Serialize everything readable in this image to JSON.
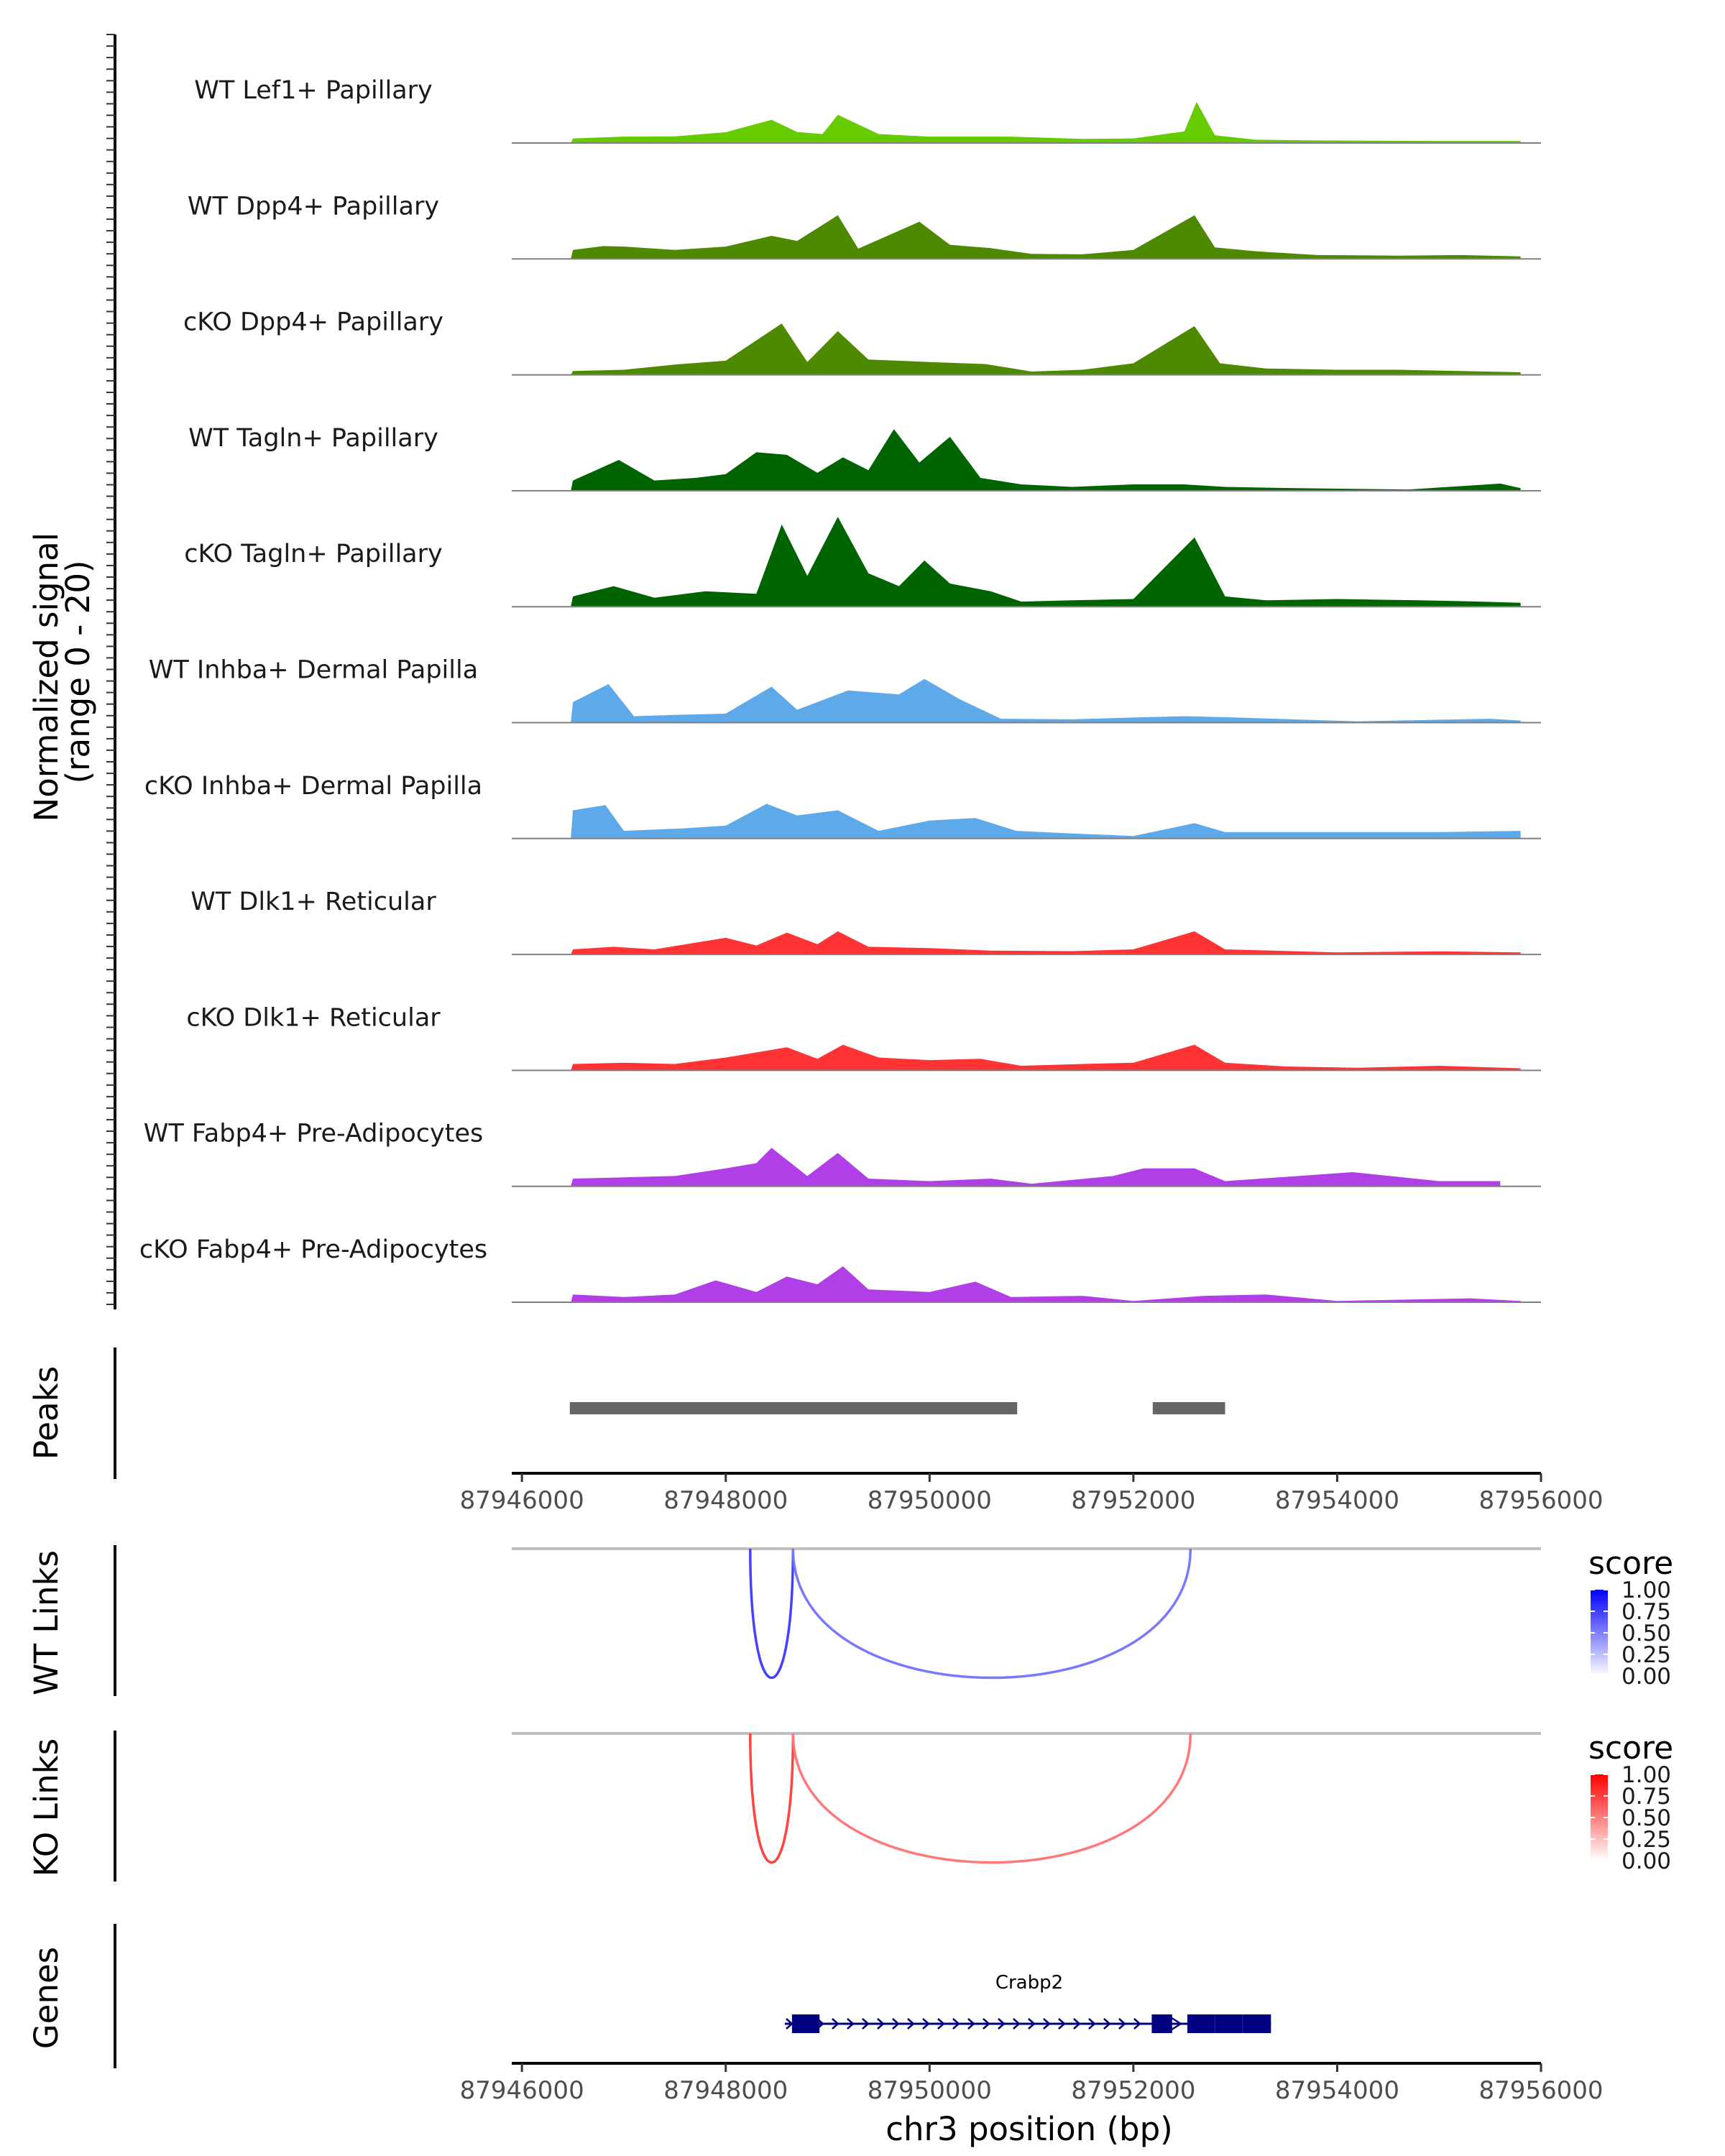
{
  "chart_data": {
    "type": "genome-track",
    "xaxis": {
      "label": "chr3 position (bp)",
      "range": [
        87945900,
        87956000
      ],
      "ticks": [
        87946000,
        87948000,
        87950000,
        87952000,
        87954000,
        87956000
      ],
      "tick_labels": [
        "87946000",
        "87948000",
        "87950000",
        "87952000",
        "87954000",
        "87956000"
      ]
    },
    "coverage": {
      "ylabel_line1": "Normalized signal",
      "ylabel_line2": "(range 0 - 20)",
      "y_range": [
        0,
        20
      ],
      "tracks": [
        {
          "name": "WT Lef1+ Papillary",
          "color": "#66CC00",
          "points": [
            [
              87946480,
              0
            ],
            [
              87946500,
              1.8
            ],
            [
              87947000,
              2.5
            ],
            [
              87947500,
              2.6
            ],
            [
              87948000,
              4.2
            ],
            [
              87948450,
              9
            ],
            [
              87948700,
              4.3
            ],
            [
              87948950,
              3.5
            ],
            [
              87949100,
              11
            ],
            [
              87949500,
              3.5
            ],
            [
              87950000,
              2.5
            ],
            [
              87950800,
              2.5
            ],
            [
              87951500,
              1.6
            ],
            [
              87952000,
              1.8
            ],
            [
              87952500,
              4.5
            ],
            [
              87952620,
              16
            ],
            [
              87952800,
              3
            ],
            [
              87953200,
              1.3
            ],
            [
              87953800,
              1
            ],
            [
              87955000,
              0.8
            ],
            [
              87955800,
              0.8
            ]
          ]
        },
        {
          "name": "WT Dpp4+ Papillary",
          "color": "#4D8A00",
          "points": [
            [
              87946480,
              0
            ],
            [
              87946500,
              3.5
            ],
            [
              87946800,
              5
            ],
            [
              87947000,
              4.8
            ],
            [
              87947500,
              3.5
            ],
            [
              87948000,
              4.8
            ],
            [
              87948450,
              9
            ],
            [
              87948700,
              7
            ],
            [
              87949100,
              17
            ],
            [
              87949300,
              4
            ],
            [
              87949900,
              14.5
            ],
            [
              87950200,
              5.5
            ],
            [
              87950600,
              4.2
            ],
            [
              87951000,
              2
            ],
            [
              87951500,
              1.8
            ],
            [
              87952000,
              3.5
            ],
            [
              87952600,
              17
            ],
            [
              87952800,
              4.5
            ],
            [
              87953200,
              3
            ],
            [
              87953800,
              1.5
            ],
            [
              87954600,
              1.3
            ],
            [
              87955200,
              1.5
            ],
            [
              87955800,
              1
            ]
          ]
        },
        {
          "name": "cKO Dpp4+ Papillary",
          "color": "#4D8A00",
          "points": [
            [
              87946480,
              0
            ],
            [
              87946500,
              1.5
            ],
            [
              87947000,
              2
            ],
            [
              87947500,
              4
            ],
            [
              87948000,
              5.5
            ],
            [
              87948550,
              20
            ],
            [
              87948800,
              5
            ],
            [
              87949100,
              17
            ],
            [
              87949400,
              6
            ],
            [
              87950000,
              5
            ],
            [
              87950550,
              4.2
            ],
            [
              87951000,
              1.3
            ],
            [
              87951500,
              2
            ],
            [
              87952000,
              4.5
            ],
            [
              87952600,
              19
            ],
            [
              87952850,
              4.5
            ],
            [
              87953300,
              2.5
            ],
            [
              87954000,
              2
            ],
            [
              87954600,
              2
            ],
            [
              87955200,
              1.5
            ],
            [
              87955800,
              1
            ]
          ]
        },
        {
          "name": "WT Tagln+ Papillary",
          "color": "#006400",
          "points": [
            [
              87946480,
              0
            ],
            [
              87946500,
              4
            ],
            [
              87946950,
              12
            ],
            [
              87947300,
              4
            ],
            [
              87947700,
              5
            ],
            [
              87948000,
              6.5
            ],
            [
              87948300,
              15
            ],
            [
              87948600,
              14
            ],
            [
              87948900,
              7
            ],
            [
              87949150,
              13
            ],
            [
              87949400,
              8
            ],
            [
              87949650,
              24
            ],
            [
              87949900,
              11
            ],
            [
              87950200,
              21
            ],
            [
              87950500,
              5
            ],
            [
              87950900,
              2.5
            ],
            [
              87951400,
              1.5
            ],
            [
              87952000,
              2.5
            ],
            [
              87952500,
              2.5
            ],
            [
              87952900,
              1.5
            ],
            [
              87953600,
              1
            ],
            [
              87954700,
              0.5
            ],
            [
              87955600,
              2.8
            ],
            [
              87955800,
              1
            ]
          ]
        },
        {
          "name": "cKO Tagln+ Papillary",
          "color": "#006400",
          "points": [
            [
              87946480,
              0
            ],
            [
              87946500,
              4
            ],
            [
              87946900,
              8
            ],
            [
              87947300,
              3.5
            ],
            [
              87947800,
              6
            ],
            [
              87948300,
              5
            ],
            [
              87948550,
              32
            ],
            [
              87948800,
              12
            ],
            [
              87949100,
              35
            ],
            [
              87949400,
              13
            ],
            [
              87949700,
              8
            ],
            [
              87949950,
              18
            ],
            [
              87950200,
              9
            ],
            [
              87950600,
              6
            ],
            [
              87950900,
              2
            ],
            [
              87951400,
              2.5
            ],
            [
              87952000,
              3
            ],
            [
              87952600,
              27
            ],
            [
              87952900,
              4
            ],
            [
              87953300,
              2.5
            ],
            [
              87954000,
              3
            ],
            [
              87954800,
              2.5
            ],
            [
              87955400,
              2
            ],
            [
              87955800,
              1.5
            ]
          ]
        },
        {
          "name": "WT Inhba+ Dermal Papilla",
          "color": "#5DA9E9",
          "points": [
            [
              87946480,
              0
            ],
            [
              87946500,
              8
            ],
            [
              87946850,
              15
            ],
            [
              87947100,
              2.5
            ],
            [
              87947500,
              3
            ],
            [
              87948000,
              3.5
            ],
            [
              87948450,
              14
            ],
            [
              87948700,
              5
            ],
            [
              87949200,
              12.5
            ],
            [
              87949700,
              11
            ],
            [
              87949950,
              17
            ],
            [
              87950300,
              9
            ],
            [
              87950700,
              1.5
            ],
            [
              87951400,
              1.3
            ],
            [
              87952000,
              2
            ],
            [
              87952500,
              2.5
            ],
            [
              87953000,
              2
            ],
            [
              87954200,
              0.5
            ],
            [
              87955500,
              1.5
            ],
            [
              87955800,
              0.8
            ]
          ]
        },
        {
          "name": "cKO Inhba+ Dermal Papilla",
          "color": "#5DA9E9",
          "points": [
            [
              87946480,
              0
            ],
            [
              87946500,
              11
            ],
            [
              87946820,
              13
            ],
            [
              87947000,
              3
            ],
            [
              87947600,
              4
            ],
            [
              87948000,
              5
            ],
            [
              87948400,
              13.5
            ],
            [
              87948700,
              9
            ],
            [
              87949100,
              11
            ],
            [
              87949500,
              3
            ],
            [
              87950000,
              7
            ],
            [
              87950450,
              8
            ],
            [
              87950850,
              3
            ],
            [
              87951400,
              2
            ],
            [
              87952000,
              1
            ],
            [
              87952600,
              6
            ],
            [
              87952900,
              2.5
            ],
            [
              87954000,
              2.5
            ],
            [
              87955000,
              2.5
            ],
            [
              87955800,
              3
            ]
          ]
        },
        {
          "name": "WT Dlk1+ Reticular",
          "color": "#FF3333",
          "points": [
            [
              87946480,
              0
            ],
            [
              87946500,
              2
            ],
            [
              87946900,
              3
            ],
            [
              87947300,
              2
            ],
            [
              87948000,
              6.5
            ],
            [
              87948300,
              3.5
            ],
            [
              87948600,
              8.5
            ],
            [
              87948900,
              4
            ],
            [
              87949100,
              9
            ],
            [
              87949400,
              3
            ],
            [
              87950000,
              2.5
            ],
            [
              87950600,
              1.5
            ],
            [
              87951400,
              1.3
            ],
            [
              87952000,
              2
            ],
            [
              87952600,
              9
            ],
            [
              87952900,
              2
            ],
            [
              87954000,
              0.8
            ],
            [
              87955000,
              1.2
            ],
            [
              87955800,
              0.8
            ]
          ]
        },
        {
          "name": "cKO Dlk1+ Reticular",
          "color": "#FF3333",
          "points": [
            [
              87946480,
              0
            ],
            [
              87946500,
              2.5
            ],
            [
              87947000,
              3
            ],
            [
              87947500,
              2.5
            ],
            [
              87948000,
              5
            ],
            [
              87948600,
              9
            ],
            [
              87948900,
              4.5
            ],
            [
              87949150,
              10
            ],
            [
              87949500,
              5
            ],
            [
              87950000,
              4
            ],
            [
              87950500,
              4.5
            ],
            [
              87950900,
              1.8
            ],
            [
              87951500,
              2.5
            ],
            [
              87952000,
              3
            ],
            [
              87952600,
              10
            ],
            [
              87952900,
              3
            ],
            [
              87953500,
              1.5
            ],
            [
              87954200,
              1
            ],
            [
              87955000,
              1.8
            ],
            [
              87955800,
              0.8
            ]
          ]
        },
        {
          "name": "WT Fabp4+ Pre-Adipocytes",
          "color": "#B03FE8",
          "points": [
            [
              87946480,
              0
            ],
            [
              87946500,
              3
            ],
            [
              87947000,
              3.5
            ],
            [
              87947500,
              4
            ],
            [
              87948000,
              7
            ],
            [
              87948300,
              9
            ],
            [
              87948450,
              15
            ],
            [
              87948800,
              4
            ],
            [
              87949100,
              13
            ],
            [
              87949400,
              3
            ],
            [
              87950000,
              2
            ],
            [
              87950600,
              3
            ],
            [
              87951000,
              1
            ],
            [
              87951800,
              4
            ],
            [
              87952100,
              7
            ],
            [
              87952600,
              7
            ],
            [
              87952900,
              2
            ],
            [
              87954150,
              5.5
            ],
            [
              87955000,
              2
            ],
            [
              87955600,
              2
            ]
          ]
        },
        {
          "name": "cKO Fabp4+ Pre-Adipocytes",
          "color": "#B03FE8",
          "points": [
            [
              87946480,
              0
            ],
            [
              87946500,
              3
            ],
            [
              87947000,
              2
            ],
            [
              87947500,
              3
            ],
            [
              87947900,
              8.5
            ],
            [
              87948300,
              4
            ],
            [
              87948600,
              10
            ],
            [
              87948900,
              7
            ],
            [
              87949150,
              14
            ],
            [
              87949400,
              5
            ],
            [
              87950000,
              4
            ],
            [
              87950450,
              8
            ],
            [
              87950800,
              2
            ],
            [
              87951500,
              2.5
            ],
            [
              87952000,
              0.5
            ],
            [
              87952700,
              2.5
            ],
            [
              87953300,
              3
            ],
            [
              87954000,
              0.5
            ],
            [
              87955300,
              1.5
            ],
            [
              87955800,
              0.5
            ]
          ]
        }
      ]
    },
    "peaks": {
      "label": "Peaks",
      "color": "#666666",
      "regions": [
        [
          87946470,
          87950860
        ],
        [
          87952190,
          87952900
        ]
      ]
    },
    "links": [
      {
        "label": "WT Links",
        "legend_title": "score",
        "gradient": [
          "#ffffff",
          "#0000ff"
        ],
        "legend_ticks": [
          "1.00",
          "0.75",
          "0.50",
          "0.25",
          "0.00"
        ],
        "arcs": [
          {
            "start": 87948240,
            "end": 87948660,
            "score": 0.7
          },
          {
            "start": 87948660,
            "end": 87952560,
            "score": 0.4
          }
        ]
      },
      {
        "label": "KO Links",
        "legend_title": "score",
        "gradient": [
          "#ffffff",
          "#ff0000"
        ],
        "legend_ticks": [
          "1.00",
          "0.75",
          "0.50",
          "0.25",
          "0.00"
        ],
        "arcs": [
          {
            "start": 87948240,
            "end": 87948660,
            "score": 0.7
          },
          {
            "start": 87948660,
            "end": 87952560,
            "score": 0.4
          }
        ]
      }
    ],
    "genes": {
      "label": "Genes",
      "color": "#000080",
      "gene": {
        "name": "Crabp2",
        "strand": "+",
        "start": 87948650,
        "end": 87953350,
        "exons": [
          [
            87948650,
            87948920
          ],
          [
            87952180,
            87952380
          ],
          [
            87952530,
            87953350
          ]
        ]
      }
    }
  }
}
